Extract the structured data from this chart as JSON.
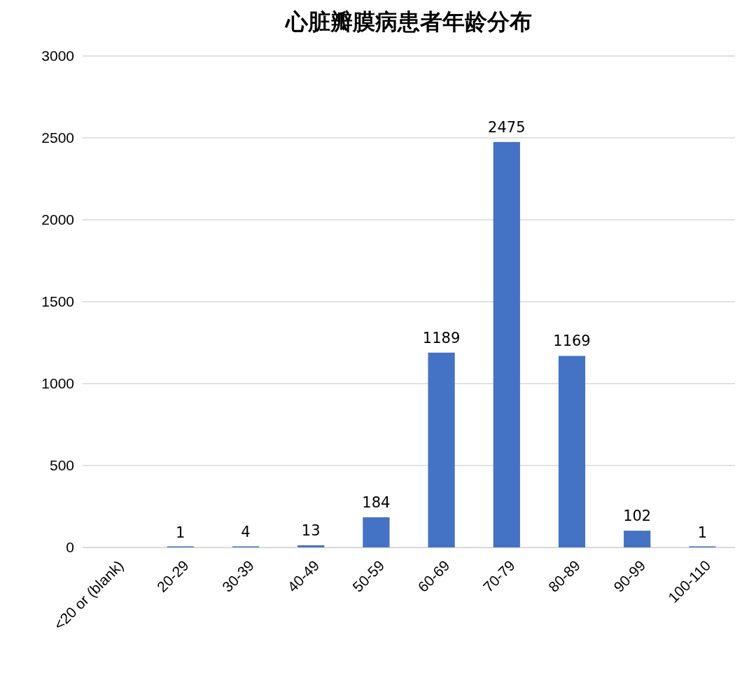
{
  "chart_data": {
    "type": "bar",
    "title": "心脏瓣膜病患者年龄分布",
    "categories": [
      "<20 or (blank)",
      "20-29",
      "30-39",
      "40-49",
      "50-59",
      "60-69",
      "70-79",
      "80-89",
      "90-99",
      "100-110"
    ],
    "values": [
      null,
      1,
      4,
      13,
      184,
      1189,
      2475,
      1169,
      102,
      1
    ],
    "color": "#4472c4",
    "ylim": [
      0,
      3000
    ],
    "yticks": [
      0,
      500,
      1000,
      1500,
      2000,
      2500,
      3000
    ],
    "grid": "y",
    "data_labels": true
  }
}
